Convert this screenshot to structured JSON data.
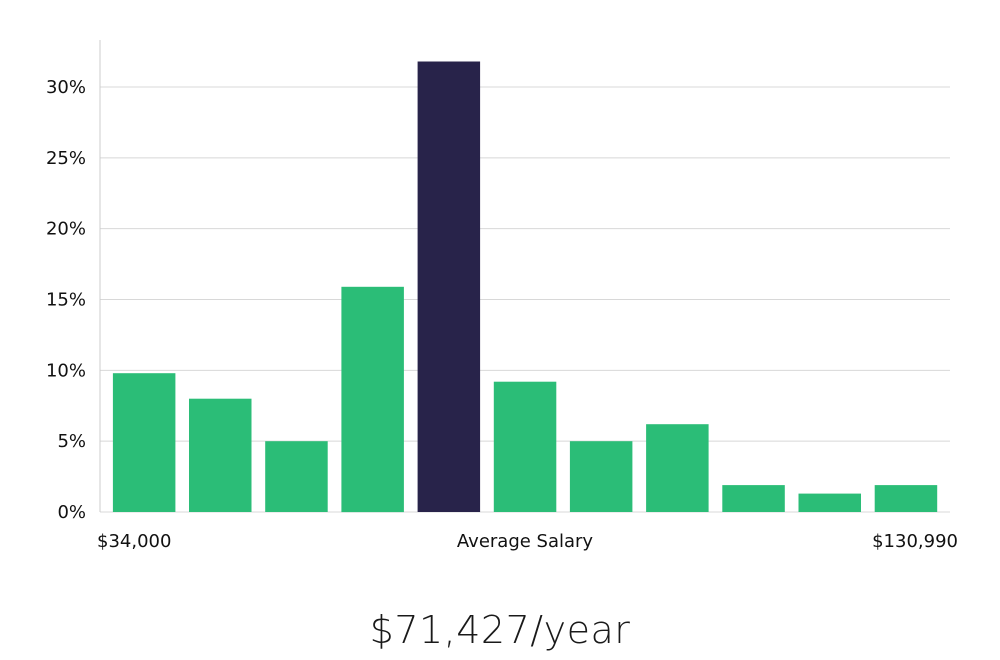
{
  "chart_data": {
    "type": "bar",
    "title": "",
    "xlabel": "Average Salary",
    "x_range_labels": {
      "min": "$34,000",
      "max": "$130,990"
    },
    "ylabel": "",
    "ylim": [
      0,
      32
    ],
    "y_ticks": [
      0,
      5,
      10,
      15,
      20,
      25,
      30
    ],
    "y_tick_labels": [
      "0%",
      "5%",
      "10%",
      "15%",
      "20%",
      "25%",
      "30%"
    ],
    "values": [
      9.8,
      8.0,
      5.0,
      15.9,
      31.8,
      9.2,
      5.0,
      6.2,
      1.9,
      1.3,
      1.9
    ],
    "highlight_index": 4,
    "grid": true
  },
  "colors": {
    "bar": "#2bbd77",
    "highlight": "#28234a",
    "grid": "#d8d8d8",
    "axis": "#cccccc"
  },
  "summary": {
    "salary": "$71,427/year"
  }
}
